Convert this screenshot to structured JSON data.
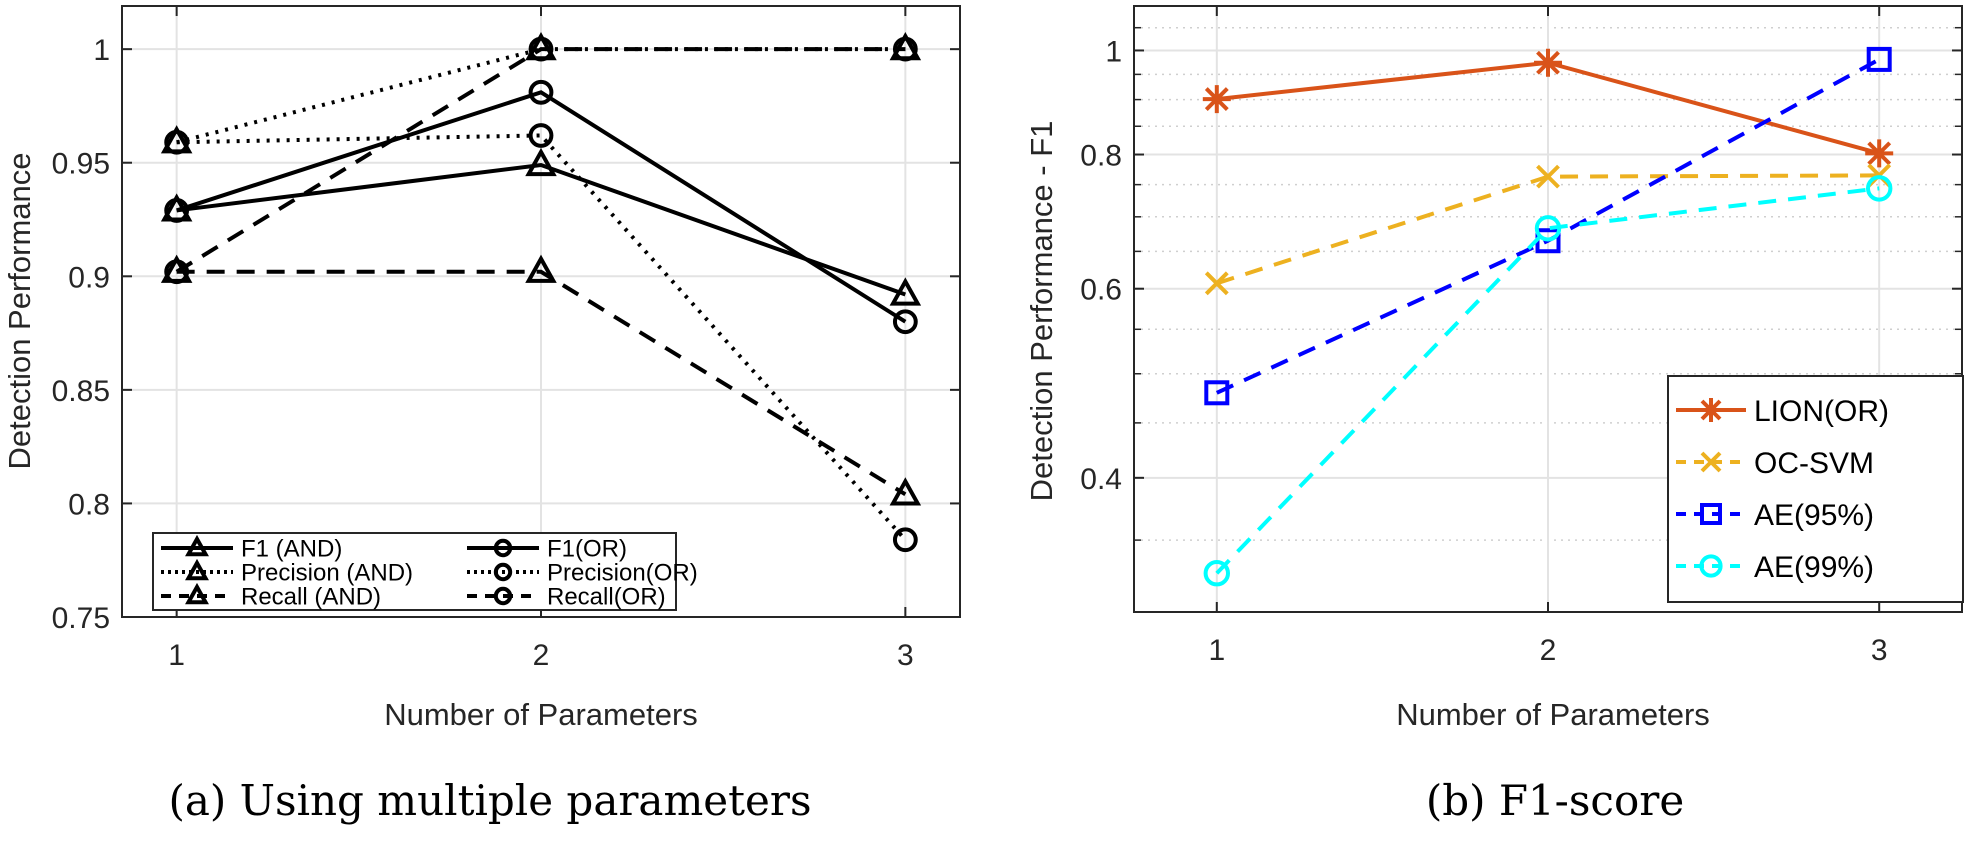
{
  "chart_data": [
    {
      "type": "line",
      "caption": "(a) Using multiple parameters",
      "xlabel": "Number of Parameters",
      "ylabel": "Detection Performance",
      "x": [
        1,
        2,
        3
      ],
      "xticks": [
        "1",
        "2",
        "3"
      ],
      "xlim": [
        0.85,
        3.15
      ],
      "ylim": [
        0.75,
        1.019
      ],
      "yticks": [
        "0.75",
        "0.8",
        "0.85",
        "0.9",
        "0.95",
        "1"
      ],
      "yscale": "linear",
      "grid": true,
      "legend_placement": "bottom-left",
      "series": [
        {
          "name": "F1 (AND)",
          "values": [
            0.929,
            0.949,
            0.892
          ],
          "line": "solid",
          "marker": "triangle",
          "color": "#000000"
        },
        {
          "name": "Precision (AND)",
          "values": [
            0.959,
            1.0,
            1.0
          ],
          "line": "dotted",
          "marker": "triangle",
          "color": "#000000"
        },
        {
          "name": "Recall (AND)",
          "values": [
            0.902,
            0.902,
            0.804
          ],
          "line": "dashed",
          "marker": "triangle",
          "color": "#000000"
        },
        {
          "name": "F1(OR)",
          "values": [
            0.929,
            0.981,
            0.88
          ],
          "line": "solid",
          "marker": "circle",
          "color": "#000000"
        },
        {
          "name": "Precision(OR)",
          "values": [
            0.959,
            0.962,
            0.784
          ],
          "line": "dotted",
          "marker": "circle",
          "color": "#000000"
        },
        {
          "name": "Recall(OR)",
          "values": [
            0.902,
            1.0,
            1.0
          ],
          "line": "dashed",
          "marker": "circle",
          "color": "#000000"
        }
      ]
    },
    {
      "type": "line",
      "caption": "(b) F1-score",
      "xlabel": "Number of Parameters",
      "ylabel": "Detection Performance - F1",
      "x": [
        1,
        2,
        3
      ],
      "xticks": [
        "1",
        "2",
        "3"
      ],
      "xlim": [
        0.75,
        3.25
      ],
      "ylim": [
        0.3,
        1.1
      ],
      "yticks": [
        "0.4",
        "0.6",
        "0.8",
        "1"
      ],
      "yscale": "log",
      "grid": true,
      "legend_placement": "bottom-right",
      "series": [
        {
          "name": "LION(OR)",
          "values": [
            0.901,
            0.974,
            0.802
          ],
          "line": "solid",
          "marker": "asterisk",
          "color": "#D95319"
        },
        {
          "name": "OC-SVM",
          "values": [
            0.607,
            0.763,
            0.765
          ],
          "line": "dashed",
          "marker": "x",
          "color": "#EDB120"
        },
        {
          "name": "AE(95%)",
          "values": [
            0.48,
            0.665,
            0.981
          ],
          "line": "dashed",
          "marker": "square",
          "color": "#0000FF"
        },
        {
          "name": "AE(99%)",
          "values": [
            0.326,
            0.683,
            0.744
          ],
          "line": "dashed",
          "marker": "circle",
          "color": "#00FFFF"
        }
      ]
    }
  ]
}
